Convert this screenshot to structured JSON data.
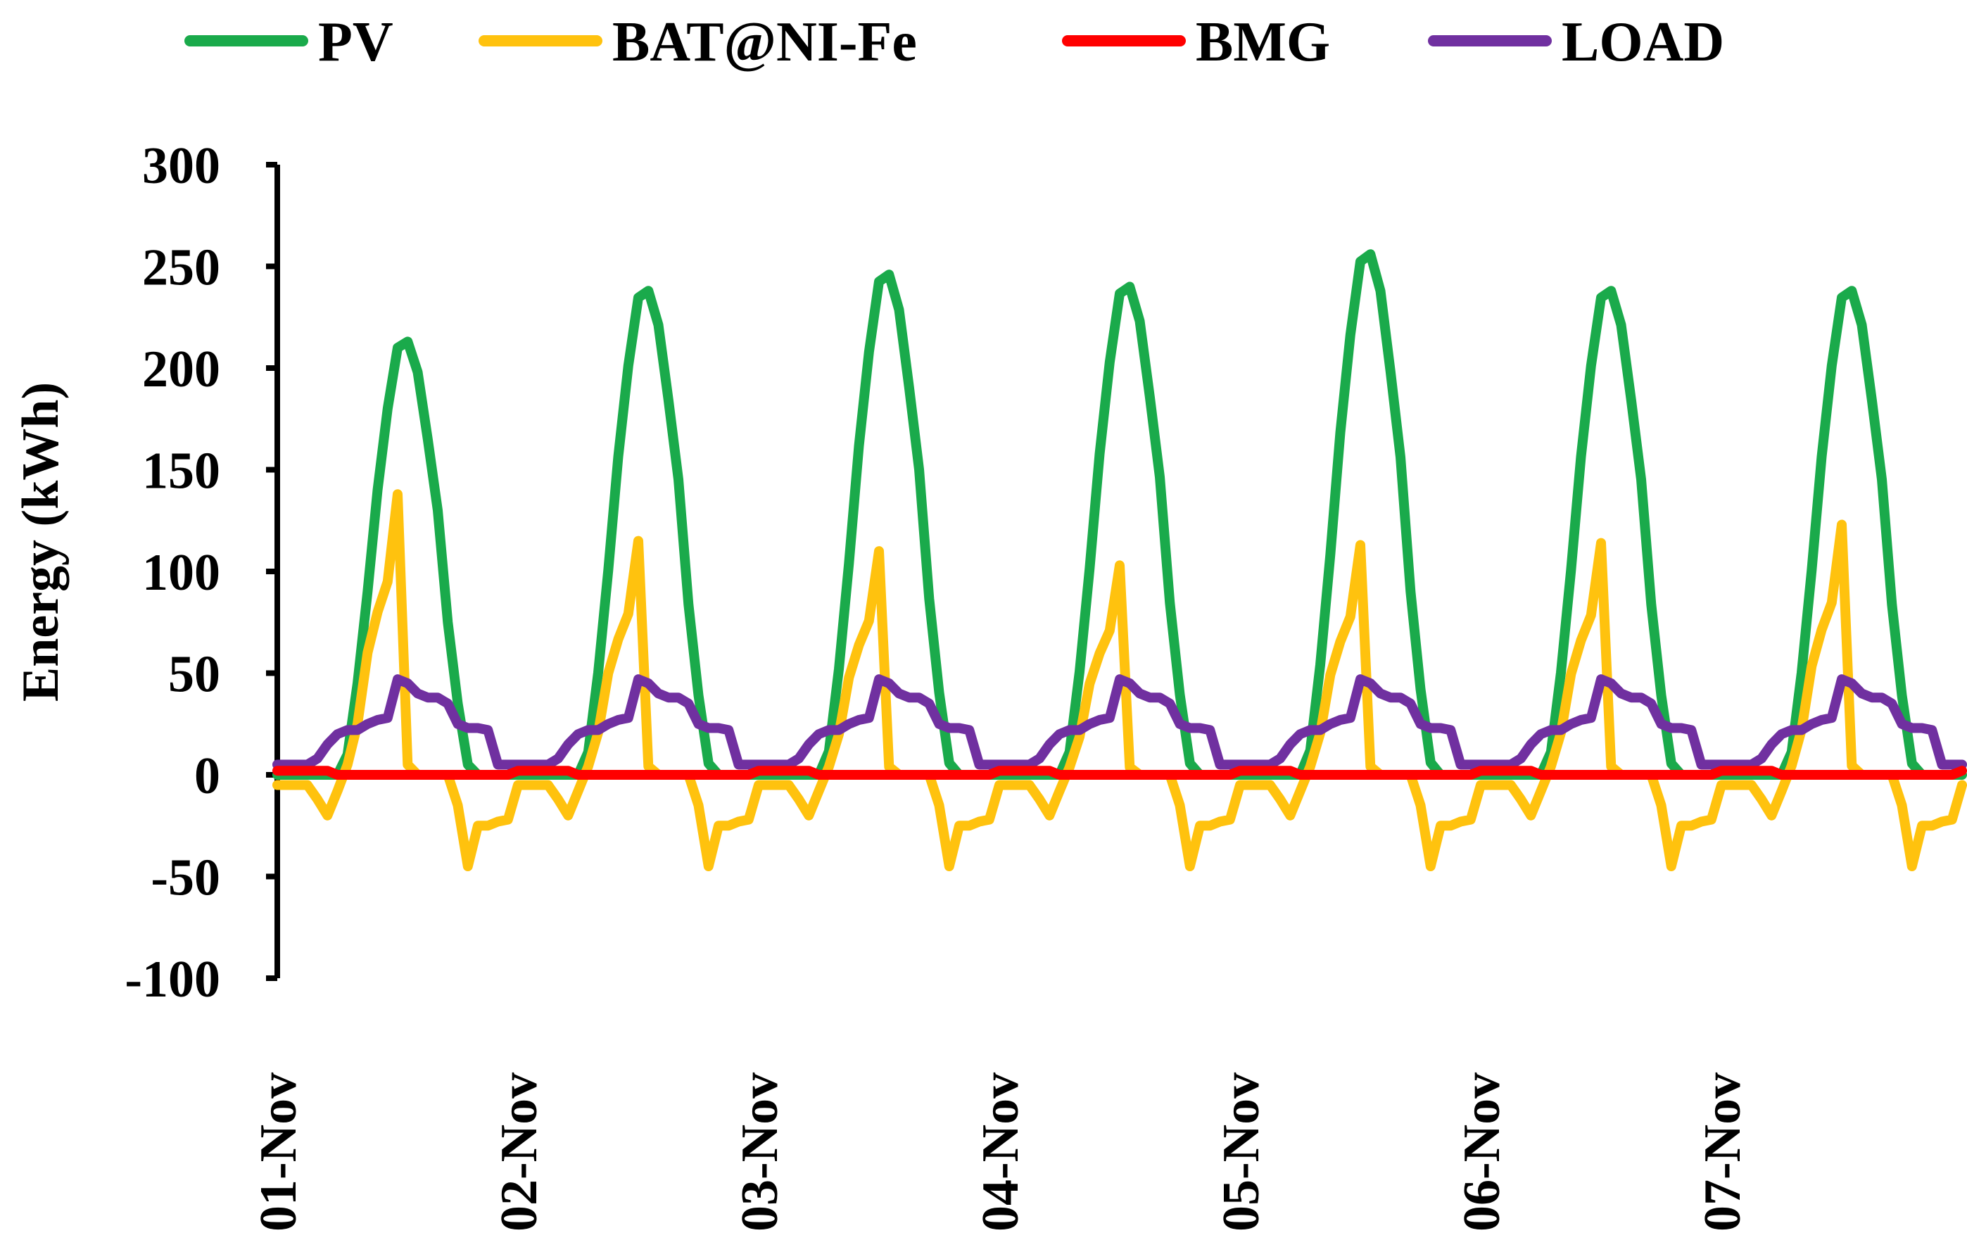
{
  "chart_data": {
    "type": "line",
    "title": "",
    "xlabel": "",
    "ylabel": "Energy (kWh)",
    "ylim": [
      -100,
      300
    ],
    "yticks": [
      "300",
      "250",
      "200",
      "150",
      "100",
      "50",
      "0",
      "-50",
      "-100"
    ],
    "yticks_values": [
      300,
      250,
      200,
      150,
      100,
      50,
      0,
      -50,
      -100
    ],
    "categories": [
      "01-Nov",
      "02-Nov",
      "03-Nov",
      "04-Nov",
      "05-Nov",
      "06-Nov",
      "07-Nov"
    ],
    "grid": false,
    "legend_position": "top",
    "series": [
      {
        "name": "PV",
        "color": "#1aaa4b",
        "peaks": [
          213,
          238,
          246,
          240,
          256,
          238,
          238
        ],
        "day_template": [
          0,
          0,
          0,
          0,
          0,
          0,
          0,
          10,
          45,
          90,
          140,
          180,
          210,
          213,
          198,
          165,
          130,
          75,
          35,
          5,
          0,
          0,
          0,
          0
        ]
      },
      {
        "name": "BAT@NI-Fe",
        "color": "#ffc20e",
        "peaks": [
          138,
          115,
          110,
          103,
          113,
          114,
          123
        ],
        "day_template": [
          -5,
          -5,
          -5,
          -5,
          -12,
          -20,
          -8,
          5,
          25,
          60,
          80,
          95,
          138,
          5,
          0,
          0,
          0,
          0,
          -15,
          -45,
          -25,
          -25,
          -23,
          -22
        ]
      },
      {
        "name": "BMG",
        "color": "#ff0000",
        "day_template": [
          2,
          2,
          2,
          2,
          2,
          2,
          0,
          0,
          0,
          0,
          0,
          0,
          0,
          0,
          0,
          0,
          0,
          0,
          0,
          0,
          0,
          0,
          0,
          0
        ]
      },
      {
        "name": "LOAD",
        "color": "#7030a0",
        "day_template": [
          5,
          5,
          5,
          5,
          8,
          15,
          20,
          22,
          22,
          25,
          27,
          28,
          47,
          45,
          40,
          38,
          38,
          35,
          25,
          23,
          23,
          22,
          5,
          5
        ]
      }
    ]
  }
}
